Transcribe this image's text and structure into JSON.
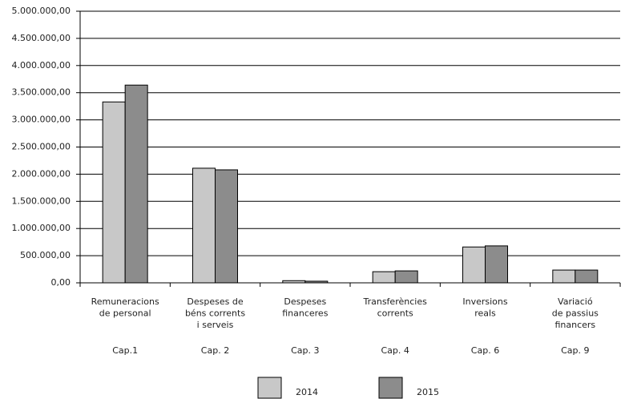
{
  "chart_data": {
    "type": "bar",
    "categories": [
      [
        "Remuneracions",
        "de personal"
      ],
      [
        "Despeses de",
        "béns corrents",
        "i serveis"
      ],
      [
        "Despeses",
        "financeres"
      ],
      [
        "Transferències",
        "corrents"
      ],
      [
        "Inversions",
        "reals"
      ],
      [
        "Variació",
        "de passius",
        "financers"
      ]
    ],
    "codes": [
      "Cap.1",
      "Cap. 2",
      "Cap. 3",
      "Cap. 4",
      "Cap. 6",
      "Cap. 9"
    ],
    "series": [
      {
        "name": "2014",
        "color": "#c8c8c8",
        "values": [
          3330000,
          2110000,
          40000,
          205000,
          660000,
          235000
        ]
      },
      {
        "name": "2015",
        "color": "#8c8c8c",
        "values": [
          3640000,
          2080000,
          30000,
          220000,
          680000,
          235000
        ]
      }
    ],
    "ylim": [
      0,
      5000000
    ],
    "yticks": [
      {
        "value": 0,
        "label": "0,00"
      },
      {
        "value": 500000,
        "label": "500.000,00"
      },
      {
        "value": 1000000,
        "label": "1.000.000,00"
      },
      {
        "value": 1500000,
        "label": "1.500.000,00"
      },
      {
        "value": 2000000,
        "label": "2.000.000,00"
      },
      {
        "value": 2500000,
        "label": "2.500.000,00"
      },
      {
        "value": 3000000,
        "label": "3.000.000,00"
      },
      {
        "value": 3500000,
        "label": "3.500.000,00"
      },
      {
        "value": 4000000,
        "label": "4.000.000,00"
      },
      {
        "value": 4500000,
        "label": "4.500.000,00"
      },
      {
        "value": 5000000,
        "label": "5.000.000,00"
      }
    ],
    "grid": true,
    "legend": "bottom"
  }
}
